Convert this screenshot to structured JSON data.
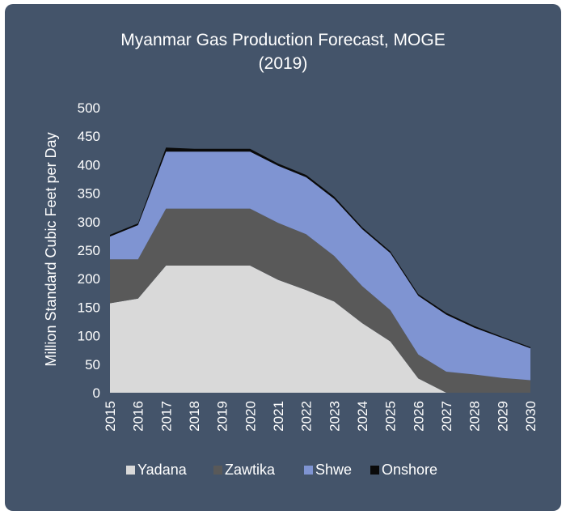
{
  "chart_data": {
    "type": "area",
    "stacked": true,
    "title_line1": "Myanmar Gas Production Forecast, MOGE",
    "title_line2": "(2019)",
    "ylabel": "Million Standard Cubic Feet per Day",
    "xlabel": "",
    "ylim": [
      0,
      500
    ],
    "yticks": [
      "0",
      "50",
      "100",
      "150",
      "200",
      "250",
      "300",
      "350",
      "400",
      "450",
      "500"
    ],
    "grid": false,
    "legend_position": "bottom",
    "categories": [
      "2015",
      "2016",
      "2017",
      "2018",
      "2019",
      "2020",
      "2021",
      "2022",
      "2023",
      "2024",
      "2025",
      "2026",
      "2027",
      "2028",
      "2029",
      "2030"
    ],
    "series": [
      {
        "name": "Yadana",
        "color": "#d9d9d9",
        "values": [
          157,
          165,
          223,
          223,
          223,
          223,
          198,
          180,
          160,
          122,
          90,
          25,
          0,
          0,
          0,
          0
        ]
      },
      {
        "name": "Zawtika",
        "color": "#595959",
        "values": [
          77,
          69,
          100,
          100,
          100,
          100,
          100,
          98,
          80,
          65,
          55,
          42,
          37,
          32,
          26,
          22
        ]
      },
      {
        "name": "Shwe",
        "color": "#7f94d2",
        "values": [
          40,
          60,
          100,
          100,
          100,
          100,
          100,
          100,
          100,
          100,
          100,
          103,
          100,
          82,
          70,
          56
        ]
      },
      {
        "name": "Onshore",
        "color": "#0a0a0a",
        "values": [
          3,
          3,
          7,
          5,
          5,
          5,
          4,
          4,
          4,
          3,
          3,
          3,
          3,
          3,
          2,
          2
        ]
      }
    ]
  }
}
